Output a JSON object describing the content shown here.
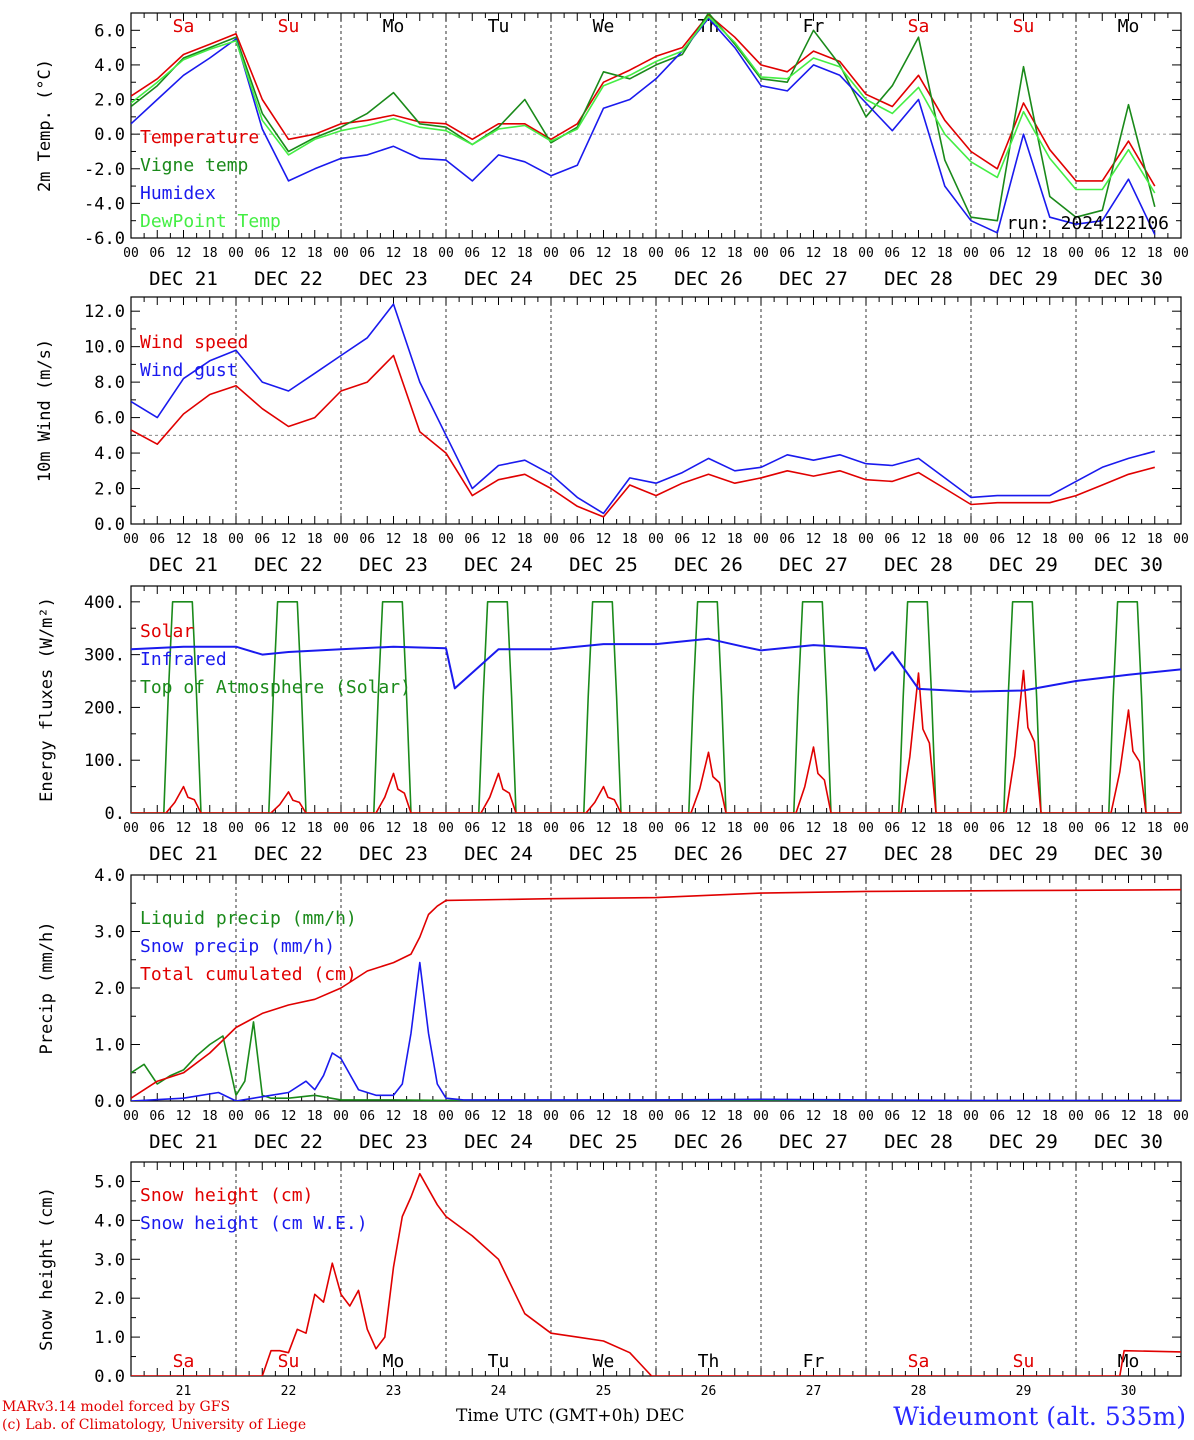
{
  "footer": {
    "credit_line1": "MARv3.14 model forced by GFS",
    "credit_line2": "(c) Lab. of Climatology, University of Liege",
    "x_axis_title": "Time UTC (GMT+0h) DEC",
    "station": "Wideumont (alt. 535m)"
  },
  "colors": {
    "red": "#e00000",
    "green": "#1a8a1a",
    "blue": "#1a1aee",
    "light_green": "#44ee44",
    "weekend": "#e00000",
    "weekday": "#000000"
  },
  "chart_data": [
    {
      "type": "line",
      "ylabel": "2m Temp. (°C)",
      "ylim": [
        -6,
        7
      ],
      "yticks": [
        "6.0",
        "4.0",
        "2.0",
        "0.0",
        "-2.0",
        "-4.0",
        "-6.0"
      ],
      "ytick_values": [
        6,
        4,
        2,
        0,
        -2,
        -4,
        -6
      ],
      "reference_line": 0,
      "day_labels": [
        "Sa",
        "Su",
        "Mo",
        "Tu",
        "We",
        "Th",
        "Fr",
        "Sa",
        "Su",
        "Mo"
      ],
      "date_labels": [
        "DEC 21",
        "DEC 22",
        "DEC 23",
        "DEC 24",
        "DEC 25",
        "DEC 26",
        "DEC 27",
        "DEC 28",
        "DEC 29",
        "DEC 30"
      ],
      "hour_labels": [
        "00",
        "06",
        "12",
        "18"
      ],
      "final_hour_label": "00",
      "annotation": "run: 2024122106",
      "x_hours": [
        0,
        6,
        12,
        18,
        24,
        30,
        36,
        42,
        48,
        54,
        60,
        66,
        72,
        78,
        84,
        90,
        96,
        102,
        108,
        114,
        120,
        126,
        132,
        138,
        144,
        150,
        156,
        162,
        168,
        174,
        180,
        186,
        192,
        198,
        204,
        210,
        216,
        222,
        228,
        234
      ],
      "series": [
        {
          "name": "Temperature",
          "color": "#e00000",
          "values": [
            2.2,
            3.2,
            4.6,
            5.2,
            5.8,
            2.0,
            -0.3,
            0.0,
            0.6,
            0.8,
            1.1,
            0.7,
            0.6,
            -0.3,
            0.6,
            0.6,
            -0.3,
            0.6,
            3.0,
            3.7,
            4.5,
            5.0,
            6.9,
            5.6,
            4.0,
            3.6,
            4.8,
            4.2,
            2.3,
            1.6,
            3.4,
            0.8,
            -1.0,
            -2.0,
            1.8,
            -0.9,
            -2.7,
            -2.7,
            -0.4,
            -3.0
          ]
        },
        {
          "name": "Vigne temp",
          "color": "#1a8a1a",
          "values": [
            1.6,
            2.8,
            4.4,
            5.0,
            5.6,
            1.2,
            -1.0,
            -0.2,
            0.4,
            1.2,
            2.4,
            0.6,
            0.4,
            -0.6,
            0.4,
            2.0,
            -0.5,
            0.4,
            3.6,
            3.2,
            4.0,
            4.6,
            7.0,
            5.2,
            3.2,
            3.0,
            6.0,
            4.0,
            1.0,
            2.8,
            5.6,
            -1.5,
            -4.8,
            -5.0,
            3.9,
            -3.6,
            -4.8,
            -4.4,
            1.7,
            -4.2
          ]
        },
        {
          "name": "Humidex",
          "color": "#1a1aee",
          "values": [
            0.6,
            2.0,
            3.4,
            4.4,
            5.5,
            0.3,
            -2.7,
            -2.0,
            -1.4,
            -1.2,
            -0.7,
            -1.4,
            -1.5,
            -2.7,
            -1.2,
            -1.6,
            -2.4,
            -1.8,
            1.5,
            2.0,
            3.2,
            4.8,
            6.7,
            5.0,
            2.8,
            2.5,
            4.0,
            3.4,
            1.8,
            0.2,
            2.0,
            -3.0,
            -5.0,
            -5.7,
            0.0,
            -4.8,
            -5.2,
            -5.0,
            -2.6,
            -5.8
          ]
        },
        {
          "name": "DewPoint Temp",
          "color": "#44ee44",
          "values": [
            1.8,
            3.0,
            4.3,
            4.9,
            5.4,
            0.8,
            -1.2,
            -0.3,
            0.2,
            0.5,
            0.9,
            0.4,
            0.2,
            -0.6,
            0.3,
            0.5,
            -0.4,
            0.3,
            2.8,
            3.4,
            4.2,
            4.8,
            6.8,
            5.3,
            3.3,
            3.2,
            4.4,
            3.9,
            2.0,
            1.2,
            2.7,
            0.0,
            -1.6,
            -2.5,
            1.3,
            -1.4,
            -3.2,
            -3.2,
            -0.9,
            -3.4
          ]
        }
      ]
    },
    {
      "type": "line",
      "ylabel": "10m Wind (m/s)",
      "ylim": [
        0,
        12.8
      ],
      "yticks": [
        "12.0",
        "10.0",
        "8.0",
        "6.0",
        "4.0",
        "2.0",
        "0.0"
      ],
      "ytick_values": [
        12,
        10,
        8,
        6,
        4,
        2,
        0
      ],
      "reference_line": 5,
      "date_labels": [
        "DEC 21",
        "DEC 22",
        "DEC 23",
        "DEC 24",
        "DEC 25",
        "DEC 26",
        "DEC 27",
        "DEC 28",
        "DEC 29",
        "DEC 30"
      ],
      "hour_labels": [
        "00",
        "06",
        "12",
        "18"
      ],
      "final_hour_label": "00",
      "x_hours": [
        0,
        6,
        12,
        18,
        24,
        30,
        36,
        42,
        48,
        54,
        60,
        66,
        72,
        78,
        84,
        90,
        96,
        102,
        108,
        114,
        120,
        126,
        132,
        138,
        144,
        150,
        156,
        162,
        168,
        174,
        180,
        186,
        192,
        198,
        204,
        210,
        216,
        222,
        228,
        234
      ],
      "series": [
        {
          "name": "Wind speed",
          "color": "#e00000",
          "values": [
            5.3,
            4.5,
            6.2,
            7.3,
            7.8,
            6.5,
            5.5,
            6.0,
            7.5,
            8.0,
            9.5,
            5.2,
            4.0,
            1.6,
            2.5,
            2.8,
            2.0,
            1.0,
            0.4,
            2.2,
            1.6,
            2.3,
            2.8,
            2.3,
            2.6,
            3.0,
            2.7,
            3.0,
            2.5,
            2.4,
            2.9,
            2.0,
            1.1,
            1.2,
            1.2,
            1.2,
            1.6,
            2.2,
            2.8,
            3.2
          ]
        },
        {
          "name": "Wind gust",
          "color": "#1a1aee",
          "values": [
            6.9,
            6.0,
            8.2,
            9.2,
            9.8,
            8.0,
            7.5,
            8.5,
            9.5,
            10.5,
            12.4,
            8.0,
            5.0,
            2.0,
            3.3,
            3.6,
            2.8,
            1.5,
            0.6,
            2.6,
            2.3,
            2.9,
            3.7,
            3.0,
            3.2,
            3.9,
            3.6,
            3.9,
            3.4,
            3.3,
            3.7,
            2.6,
            1.5,
            1.6,
            1.6,
            1.6,
            2.4,
            3.2,
            3.7,
            4.1
          ]
        }
      ]
    },
    {
      "type": "line",
      "ylabel": "Energy fluxes (W/m²)",
      "ylim": [
        0,
        430
      ],
      "yticks": [
        "400.",
        "300.",
        "200.",
        "100.",
        "0."
      ],
      "ytick_values": [
        400,
        300,
        200,
        100,
        0
      ],
      "date_labels": [
        "DEC 21",
        "DEC 22",
        "DEC 23",
        "DEC 24",
        "DEC 25",
        "DEC 26",
        "DEC 27",
        "DEC 28",
        "DEC 29",
        "DEC 30"
      ],
      "hour_labels": [
        "00",
        "06",
        "12",
        "18"
      ],
      "final_hour_label": "00",
      "toa_peak": 400,
      "solar_peaks": [
        50,
        40,
        75,
        75,
        50,
        115,
        125,
        265,
        270,
        195
      ],
      "infrared": {
        "name": "Infrared",
        "color": "#1a1aee",
        "x_hours": [
          0,
          12,
          24,
          30,
          36,
          48,
          60,
          72,
          74,
          84,
          96,
          108,
          120,
          132,
          140,
          144,
          156,
          168,
          170,
          174,
          180,
          192,
          204,
          216,
          228,
          240
        ],
        "values": [
          310,
          315,
          315,
          300,
          305,
          310,
          315,
          312,
          236,
          310,
          310,
          320,
          320,
          330,
          315,
          308,
          318,
          312,
          270,
          305,
          235,
          230,
          232,
          250,
          262,
          272
        ]
      },
      "series_names": [
        "Solar",
        "Infrared",
        "Top of Atmosphere (Solar)"
      ],
      "series_colors": [
        "#e00000",
        "#1a1aee",
        "#1a8a1a"
      ]
    },
    {
      "type": "line",
      "ylabel": "Precip (mm/h)",
      "ylim": [
        0,
        4
      ],
      "yticks": [
        "4.0",
        "3.0",
        "2.0",
        "1.0",
        "0.0"
      ],
      "ytick_values": [
        4,
        3,
        2,
        1,
        0
      ],
      "date_labels": [
        "DEC 21",
        "DEC 22",
        "DEC 23",
        "DEC 24",
        "DEC 25",
        "DEC 26",
        "DEC 27",
        "DEC 28",
        "DEC 29",
        "DEC 30"
      ],
      "hour_labels": [
        "00",
        "06",
        "12",
        "18"
      ],
      "final_hour_label": "00",
      "series": [
        {
          "name": "Liquid precip (mm/h)",
          "color": "#1a8a1a",
          "x_hours": [
            0,
            3,
            6,
            9,
            12,
            15,
            18,
            21,
            24,
            26,
            28,
            30,
            32,
            36,
            42,
            48,
            60,
            72,
            96,
            120,
            144,
            168,
            192,
            216,
            240
          ],
          "values": [
            0.5,
            0.65,
            0.3,
            0.45,
            0.55,
            0.8,
            1.0,
            1.15,
            0.1,
            0.35,
            1.4,
            0.1,
            0.05,
            0.05,
            0.1,
            0.02,
            0.02,
            0.01,
            0.01,
            0.02,
            0.01,
            0.01,
            0.0,
            0.0,
            0.0
          ]
        },
        {
          "name": "Snow precip (mm/h)",
          "color": "#1a1aee",
          "x_hours": [
            0,
            12,
            20,
            24,
            28,
            32,
            36,
            40,
            42,
            44,
            46,
            48,
            52,
            56,
            60,
            62,
            64,
            66,
            68,
            70,
            72,
            76,
            96,
            120,
            144,
            168,
            192,
            216,
            240
          ],
          "values": [
            0.0,
            0.05,
            0.15,
            0.0,
            0.05,
            0.1,
            0.15,
            0.35,
            0.2,
            0.45,
            0.85,
            0.75,
            0.2,
            0.1,
            0.1,
            0.3,
            1.2,
            2.45,
            1.2,
            0.3,
            0.05,
            0.02,
            0.02,
            0.02,
            0.03,
            0.02,
            0.01,
            0.01,
            0.01
          ]
        },
        {
          "name": "Total cumulated (cm)",
          "color": "#e00000",
          "x_hours": [
            0,
            6,
            12,
            18,
            24,
            30,
            36,
            42,
            48,
            54,
            60,
            64,
            66,
            68,
            70,
            72,
            96,
            120,
            144,
            168,
            192,
            216,
            240
          ],
          "values": [
            0.05,
            0.35,
            0.5,
            0.85,
            1.3,
            1.55,
            1.7,
            1.8,
            2.0,
            2.3,
            2.45,
            2.6,
            2.9,
            3.3,
            3.45,
            3.55,
            3.58,
            3.6,
            3.68,
            3.71,
            3.72,
            3.73,
            3.74
          ]
        }
      ]
    },
    {
      "type": "line",
      "ylabel": "Snow height (cm)",
      "ylim": [
        0,
        5.5
      ],
      "yticks": [
        "5.0",
        "4.0",
        "3.0",
        "2.0",
        "1.0",
        "0.0"
      ],
      "ytick_values": [
        5,
        4,
        3,
        2,
        1,
        0
      ],
      "day_labels": [
        "Sa",
        "Su",
        "Mo",
        "Tu",
        "We",
        "Th",
        "Fr",
        "Sa",
        "Su",
        "Mo"
      ],
      "day_numbers": [
        "21",
        "22",
        "23",
        "24",
        "25",
        "26",
        "27",
        "28",
        "29",
        "30"
      ],
      "series": [
        {
          "name": "Snow height (cm)",
          "color": "#e00000",
          "x_hours": [
            0,
            24,
            30,
            32,
            34,
            36,
            38,
            40,
            42,
            44,
            46,
            48,
            50,
            52,
            54,
            56,
            58,
            60,
            62,
            64,
            66,
            68,
            70,
            72,
            78,
            84,
            90,
            96,
            102,
            108,
            114,
            119,
            120,
            144,
            168,
            192,
            216,
            226,
            227,
            240
          ],
          "values": [
            0.0,
            0.0,
            0.0,
            0.65,
            0.65,
            0.6,
            1.2,
            1.1,
            2.1,
            1.9,
            2.9,
            2.1,
            1.8,
            2.2,
            1.2,
            0.7,
            1.0,
            2.8,
            4.1,
            4.6,
            5.2,
            4.8,
            4.4,
            4.1,
            3.6,
            3.0,
            1.6,
            1.1,
            1.0,
            0.9,
            0.6,
            0.0,
            0.0,
            0.0,
            0.0,
            0.0,
            0.0,
            0.0,
            0.65,
            0.62
          ]
        },
        {
          "name": "Snow height (cm W.E.)",
          "color": "#1a1aee",
          "values": []
        }
      ]
    }
  ]
}
